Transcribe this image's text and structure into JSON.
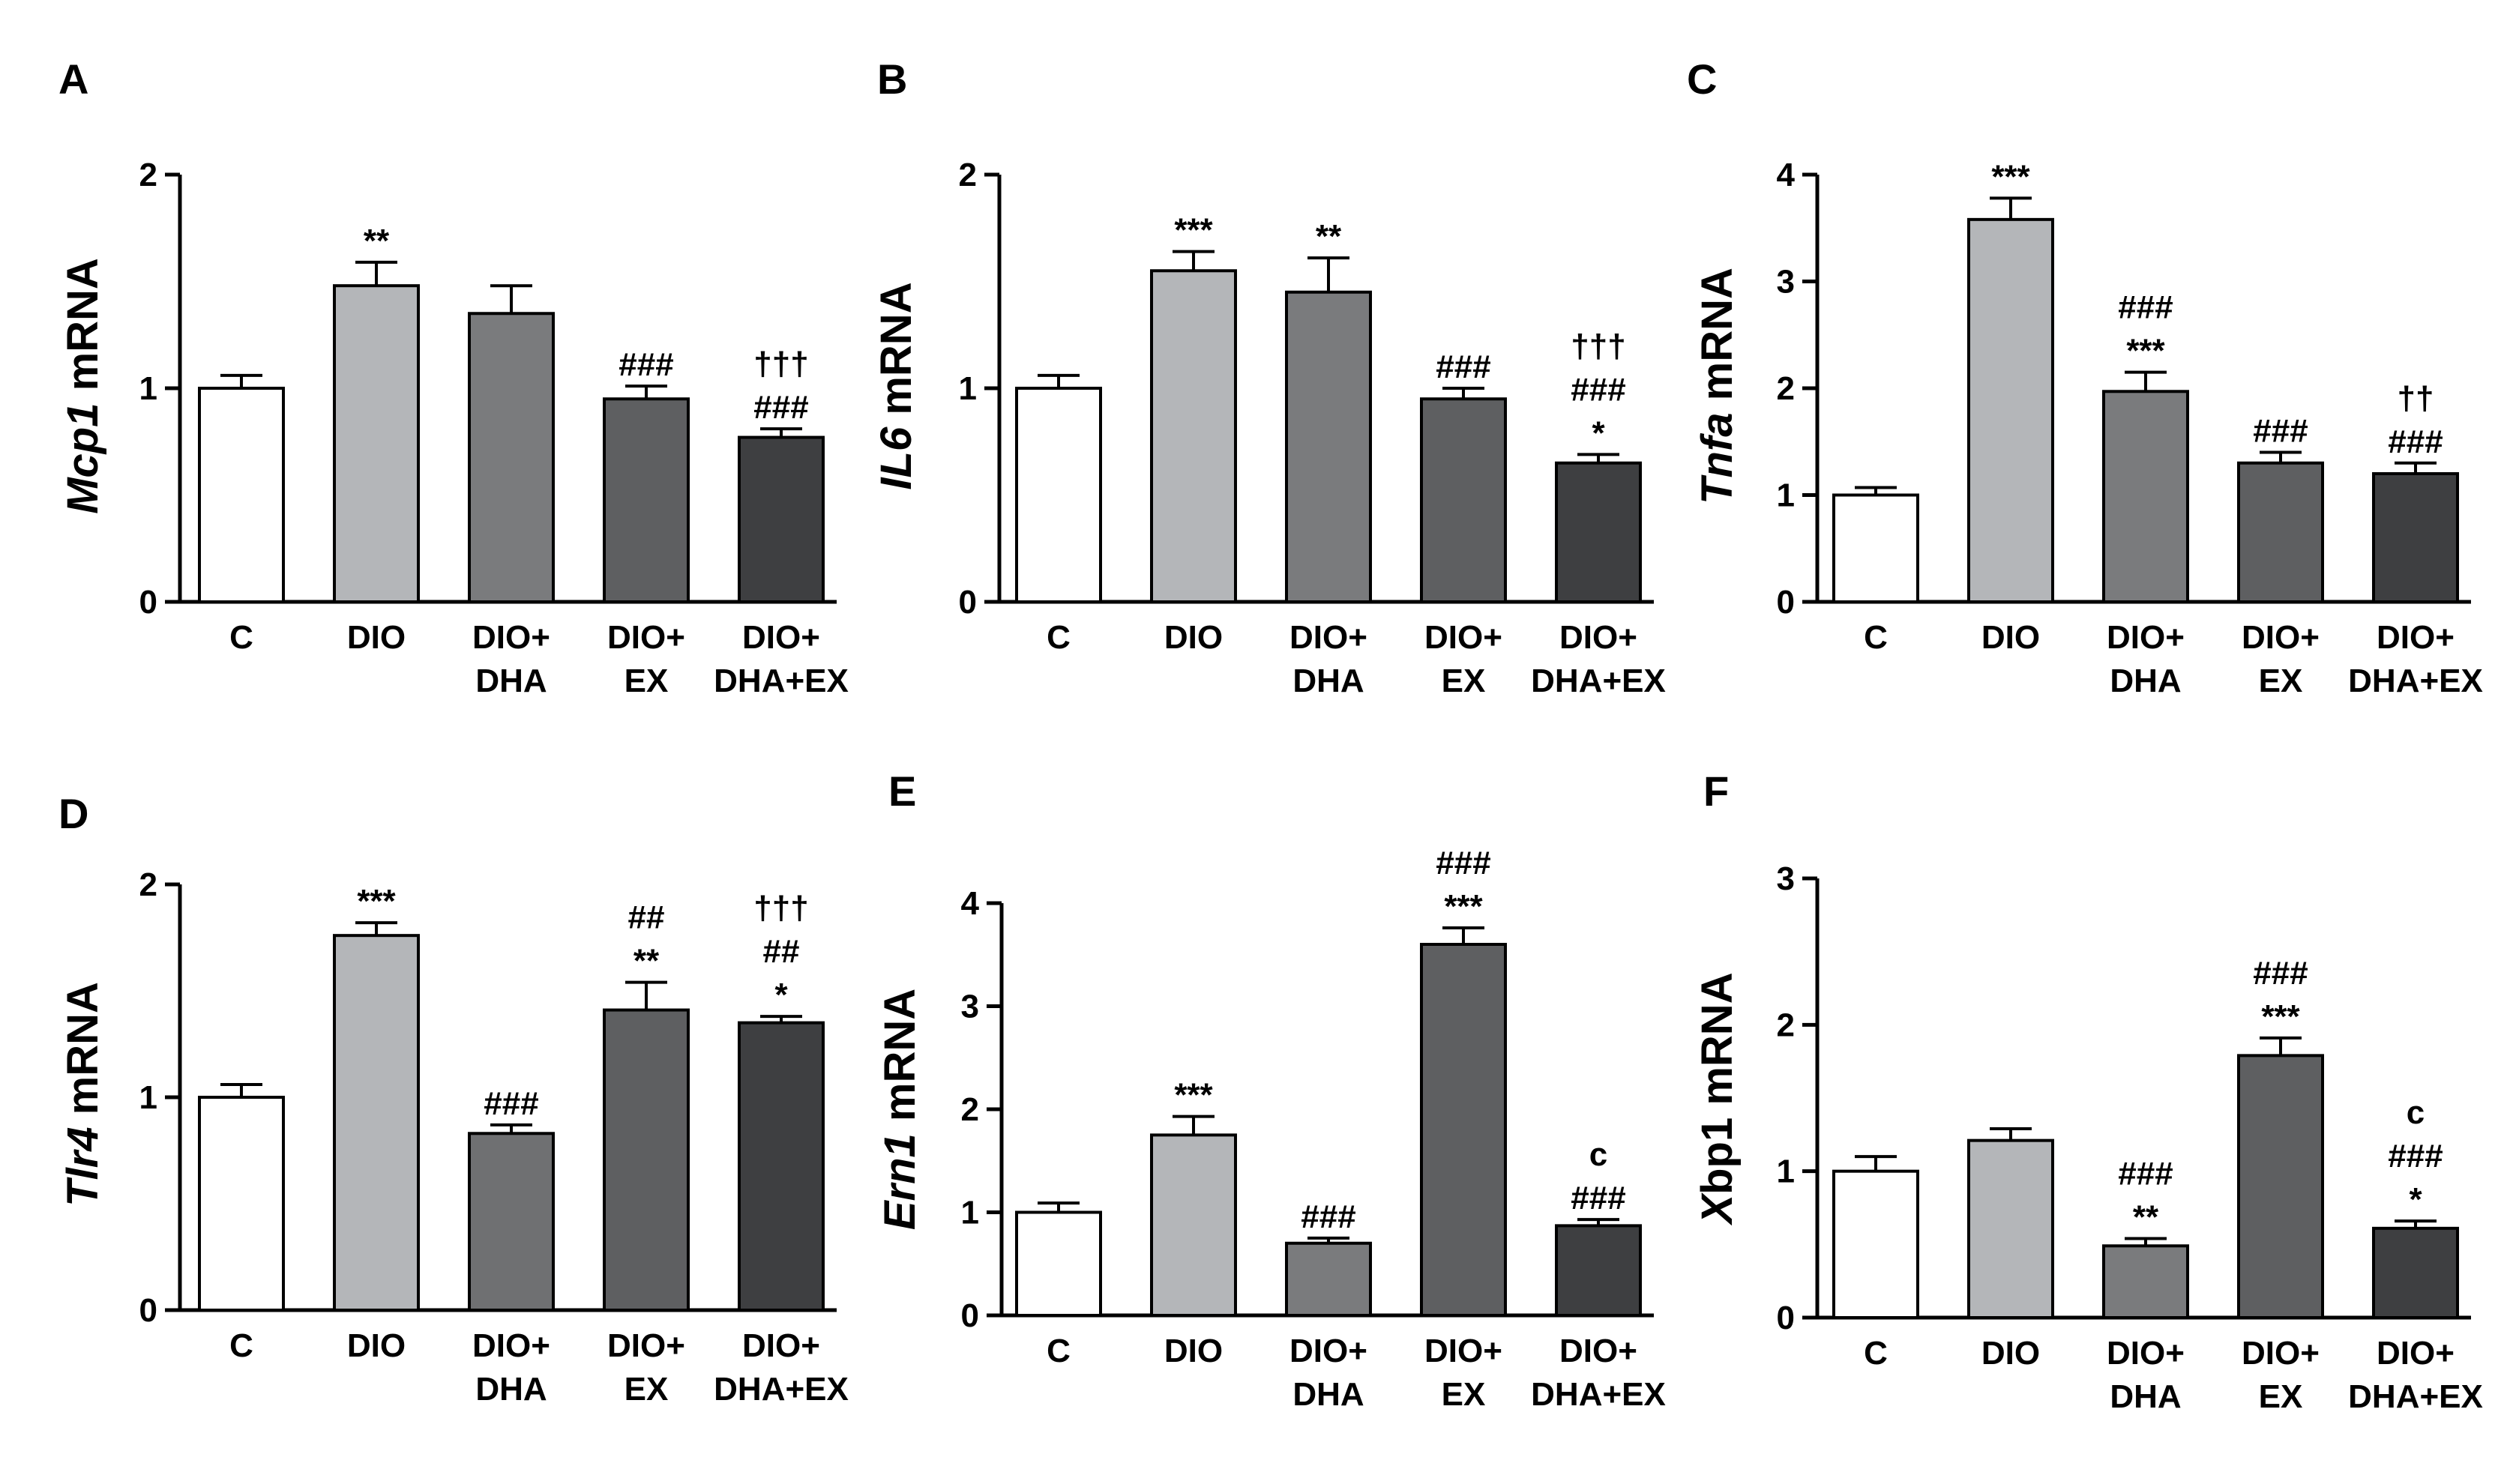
{
  "chart_data": [
    {
      "panel": "A",
      "type": "bar",
      "gene": "Mcp1",
      "ylabel_suffix": " mRNA",
      "ylim": [
        0,
        2
      ],
      "yticks": [
        "0",
        "1",
        "2"
      ],
      "categories": [
        [
          "C"
        ],
        [
          "DIO"
        ],
        [
          "DIO+",
          "DHA"
        ],
        [
          "DIO+",
          "EX"
        ],
        [
          "DIO+",
          "DHA+EX"
        ]
      ],
      "values": [
        1.0,
        1.48,
        1.35,
        0.95,
        0.77
      ],
      "errors": [
        0.06,
        0.11,
        0.13,
        0.06,
        0.04
      ],
      "annotations": [
        [],
        [
          "**"
        ],
        [],
        [
          "###"
        ],
        [
          "†††",
          "###"
        ]
      ],
      "fills": [
        "#ffffff",
        "#b4b6b9",
        "#7a7b7d",
        "#5e5f61",
        "#3e3f41"
      ]
    },
    {
      "panel": "B",
      "type": "bar",
      "gene": "IL6",
      "ylabel_suffix": " mRNA",
      "ylim": [
        0,
        2
      ],
      "yticks": [
        "0",
        "1",
        "2"
      ],
      "categories": [
        [
          "C"
        ],
        [
          "DIO"
        ],
        [
          "DIO+",
          "DHA"
        ],
        [
          "DIO+",
          "EX"
        ],
        [
          "DIO+",
          "DHA+EX"
        ]
      ],
      "values": [
        1.0,
        1.55,
        1.45,
        0.95,
        0.65
      ],
      "errors": [
        0.06,
        0.09,
        0.16,
        0.05,
        0.04
      ],
      "annotations": [
        [],
        [
          "***"
        ],
        [
          "**"
        ],
        [
          "###"
        ],
        [
          "†††",
          "###",
          "*"
        ]
      ],
      "fills": [
        "#ffffff",
        "#b4b6b9",
        "#7a7b7d",
        "#5e5f61",
        "#3e3f41"
      ]
    },
    {
      "panel": "C",
      "type": "bar",
      "gene": "Tnfa",
      "ylabel_suffix": " mRNA",
      "ylim": [
        0,
        4
      ],
      "yticks": [
        "0",
        "1",
        "2",
        "3",
        "4"
      ],
      "categories": [
        [
          "C"
        ],
        [
          "DIO"
        ],
        [
          "DIO+",
          "DHA"
        ],
        [
          "DIO+",
          "EX"
        ],
        [
          "DIO+",
          "DHA+EX"
        ]
      ],
      "values": [
        1.0,
        3.58,
        1.97,
        1.3,
        1.2
      ],
      "errors": [
        0.07,
        0.2,
        0.18,
        0.1,
        0.1
      ],
      "annotations": [
        [],
        [
          "***"
        ],
        [
          "###",
          "***"
        ],
        [
          "###"
        ],
        [
          "††",
          "###"
        ]
      ],
      "fills": [
        "#ffffff",
        "#b4b6b9",
        "#7a7b7d",
        "#5e5f61",
        "#3e3f41"
      ]
    },
    {
      "panel": "D",
      "type": "bar",
      "gene": "Tlr4",
      "ylabel_suffix": " mRNA",
      "ylim": [
        0,
        2
      ],
      "yticks": [
        "0",
        "1",
        "2"
      ],
      "categories": [
        [
          "C"
        ],
        [
          "DIO"
        ],
        [
          "DIO+",
          "DHA"
        ],
        [
          "DIO+",
          "EX"
        ],
        [
          "DIO+",
          "DHA+EX"
        ]
      ],
      "values": [
        1.0,
        1.76,
        0.83,
        1.41,
        1.35
      ],
      "errors": [
        0.06,
        0.06,
        0.04,
        0.13,
        0.03
      ],
      "annotations": [
        [],
        [
          "***"
        ],
        [
          "###"
        ],
        [
          "##",
          "**"
        ],
        [
          "†††",
          "##",
          "*"
        ]
      ],
      "fills": [
        "#ffffff",
        "#b4b6b9",
        "#6f7072",
        "#5e5f61",
        "#3e3f41"
      ]
    },
    {
      "panel": "E",
      "type": "bar",
      "gene": "Ern1",
      "ylabel_suffix": " mRNA",
      "ylim": [
        0,
        4
      ],
      "yticks": [
        "0",
        "1",
        "2",
        "3",
        "4"
      ],
      "categories": [
        [
          "C"
        ],
        [
          "DIO"
        ],
        [
          "DIO+",
          "DHA"
        ],
        [
          "DIO+",
          "EX"
        ],
        [
          "DIO+",
          "DHA+EX"
        ]
      ],
      "values": [
        1.0,
        1.75,
        0.7,
        3.6,
        0.87
      ],
      "errors": [
        0.09,
        0.18,
        0.05,
        0.16,
        0.06
      ],
      "annotations": [
        [],
        [
          "***"
        ],
        [
          "###"
        ],
        [
          "###",
          "***"
        ],
        [
          "c",
          "###"
        ]
      ],
      "fills": [
        "#ffffff",
        "#b4b6b9",
        "#7a7b7d",
        "#5e5f61",
        "#3e3f41"
      ]
    },
    {
      "panel": "F",
      "type": "bar",
      "gene": "X",
      "gene_rest": "bp1",
      "ylabel_suffix": " mRNA",
      "ylim": [
        0,
        3
      ],
      "yticks": [
        "0",
        "1",
        "2",
        "3"
      ],
      "categories": [
        [
          "C"
        ],
        [
          "DIO"
        ],
        [
          "DIO+",
          "DHA"
        ],
        [
          "DIO+",
          "EX"
        ],
        [
          "DIO+",
          "DHA+EX"
        ]
      ],
      "values": [
        1.0,
        1.21,
        0.49,
        1.79,
        0.61
      ],
      "errors": [
        0.1,
        0.08,
        0.05,
        0.12,
        0.05
      ],
      "annotations": [
        [],
        [],
        [
          "###",
          "**"
        ],
        [
          "###",
          "***"
        ],
        [
          "c",
          "###",
          "*"
        ]
      ],
      "fills": [
        "#ffffff",
        "#b4b6b9",
        "#7a7b7d",
        "#5e5f61",
        "#3e3f41"
      ]
    }
  ]
}
